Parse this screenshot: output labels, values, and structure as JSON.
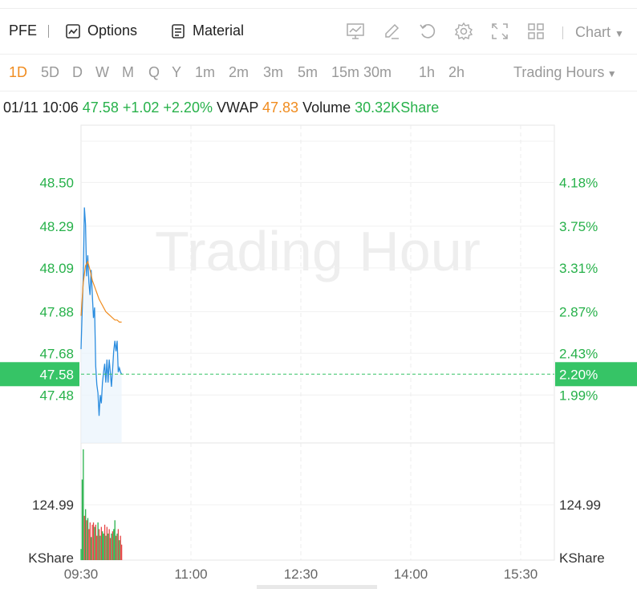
{
  "toolbar": {
    "symbol": "PFE",
    "options_label": "Options",
    "material_label": "Material",
    "chart_label": "Chart",
    "icons": [
      "options-icon",
      "material-icon",
      "indicator-icon",
      "draw-icon",
      "reset-icon",
      "settings-icon",
      "fullscreen-icon",
      "layout-icon",
      "caret-down-icon"
    ]
  },
  "periods": [
    "1D",
    "5D",
    "D",
    "W",
    "M",
    "Q",
    "Y",
    "1m",
    "2m",
    "3m",
    "5m",
    "15m",
    "30m",
    "1h",
    "2h"
  ],
  "active_period": "1D",
  "trading_hours_label": "Trading Hours",
  "quote": {
    "datetime": "01/11 10:06",
    "price": "47.58",
    "change": "+1.02",
    "change_pct": "+2.20%",
    "vwap_label": "VWAP",
    "vwap": "47.83",
    "volume_label": "Volume",
    "volume": "30.32KShare"
  },
  "watermark": "Trading Hour",
  "colors": {
    "up": "#27b14a",
    "down": "#e64545",
    "vwap": "#f08c1f",
    "price_line": "#2c8ddf",
    "current": "#36c466"
  },
  "chart_data": {
    "type": "line",
    "x_ticks": [
      "09:30",
      "11:00",
      "12:30",
      "14:00",
      "15:30"
    ],
    "price_ticks": [
      48.5,
      48.29,
      48.09,
      47.88,
      47.68,
      47.48
    ],
    "price_tick_labels": [
      "48.50",
      "48.29",
      "48.09",
      "47.88",
      "47.68",
      "47.48"
    ],
    "pct_tick_labels": [
      "4.18%",
      "3.75%",
      "3.31%",
      "2.87%",
      "2.43%",
      "1.99%"
    ],
    "current_price": 47.58,
    "current_price_label": "47.58",
    "current_pct_label": "2.20%",
    "ylim": [
      47.25,
      48.79
    ],
    "volume_tick_label": "124.99",
    "volume_unit": "KShare",
    "volume_tick_value": 124.99,
    "volume_max": 250,
    "series": [
      {
        "name": "Price",
        "x_minutes": [
          0,
          1,
          2,
          3,
          4,
          5,
          6,
          7,
          8,
          9,
          10,
          11,
          12,
          13,
          14,
          15,
          16,
          17,
          18,
          19,
          20,
          21,
          22,
          23,
          24,
          25,
          26,
          27,
          28,
          29,
          30,
          31,
          32,
          33,
          34,
          35,
          36
        ],
        "values": [
          47.7,
          47.88,
          48.05,
          48.38,
          48.3,
          48.05,
          48.15,
          48.02,
          47.96,
          48.08,
          47.96,
          47.85,
          47.9,
          47.62,
          47.53,
          47.49,
          47.38,
          47.48,
          47.44,
          47.54,
          47.59,
          47.63,
          47.54,
          47.65,
          47.54,
          47.65,
          47.59,
          47.52,
          47.6,
          47.69,
          47.74,
          47.69,
          47.74,
          47.59,
          47.61,
          47.59,
          47.58
        ]
      },
      {
        "name": "VWAP",
        "x_minutes": [
          0,
          2,
          4,
          6,
          8,
          10,
          12,
          14,
          16,
          18,
          20,
          22,
          24,
          26,
          28,
          30,
          32,
          34,
          36
        ],
        "values": [
          47.86,
          48.02,
          48.1,
          48.12,
          48.08,
          48.03,
          48.0,
          47.97,
          47.94,
          47.92,
          47.9,
          47.88,
          47.87,
          47.86,
          47.85,
          47.84,
          47.84,
          47.83,
          47.83
        ]
      }
    ],
    "volume": {
      "x_minutes": [
        0,
        1,
        2,
        3,
        4,
        5,
        6,
        7,
        8,
        9,
        10,
        11,
        12,
        13,
        14,
        15,
        16,
        17,
        18,
        19,
        20,
        21,
        22,
        23,
        24,
        25,
        26,
        27,
        28,
        29,
        30,
        31,
        32,
        33,
        34,
        35,
        36
      ],
      "values": [
        25,
        182,
        250,
        100,
        115,
        90,
        95,
        70,
        85,
        52,
        80,
        85,
        75,
        80,
        55,
        85,
        70,
        55,
        75,
        65,
        60,
        80,
        55,
        75,
        60,
        70,
        50,
        60,
        65,
        70,
        90,
        55,
        60,
        70,
        45,
        55,
        35
      ],
      "up": [
        true,
        true,
        true,
        false,
        true,
        false,
        true,
        false,
        false,
        true,
        false,
        false,
        true,
        false,
        false,
        true,
        false,
        true,
        false,
        true,
        true,
        false,
        true,
        false,
        true,
        false,
        false,
        true,
        false,
        true,
        true,
        false,
        true,
        false,
        true,
        false,
        false
      ]
    }
  }
}
